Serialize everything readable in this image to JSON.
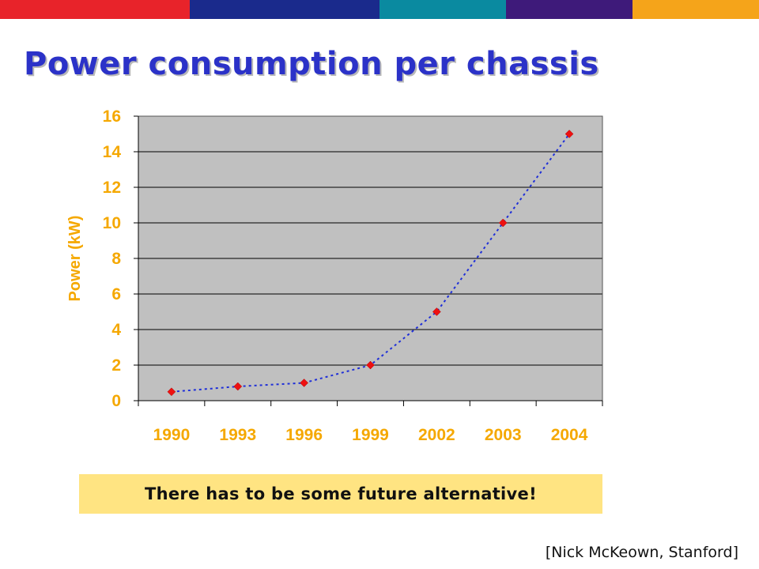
{
  "slide": {
    "title": "Power consumption per chassis",
    "callout": "There has to be some future alternative!",
    "citation": "[Nick McKeown, Stanford]",
    "topbar_colors": [
      "#e8232a",
      "#1a2a8c",
      "#0a8aa0",
      "#3e1a7a",
      "#f5a41a"
    ]
  },
  "chart_data": {
    "type": "line",
    "title": "",
    "xlabel": "",
    "ylabel": "Power (kW)",
    "categories": [
      "1990",
      "1993",
      "1996",
      "1999",
      "2002",
      "2003",
      "2004"
    ],
    "series": [
      {
        "values": [
          0.5,
          0.8,
          1.0,
          2.0,
          5.0,
          10.0,
          15.0
        ]
      }
    ],
    "ylim": [
      0,
      16
    ],
    "yticks": [
      0,
      2,
      4,
      6,
      8,
      10,
      12,
      14,
      16
    ],
    "grid": true,
    "legend": "none",
    "colors": {
      "line": "#1f2fd8",
      "marker": "#ee1111",
      "plot_background": "#c0c0c0",
      "axis_text": "#f5a800"
    },
    "line_style": "dotted",
    "marker_shape": "diamond"
  }
}
